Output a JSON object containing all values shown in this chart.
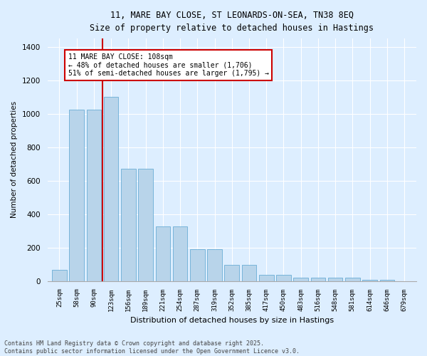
{
  "title_line1": "11, MARE BAY CLOSE, ST LEONARDS-ON-SEA, TN38 8EQ",
  "title_line2": "Size of property relative to detached houses in Hastings",
  "xlabel": "Distribution of detached houses by size in Hastings",
  "ylabel": "Number of detached properties",
  "categories": [
    "25sqm",
    "58sqm",
    "90sqm",
    "123sqm",
    "156sqm",
    "189sqm",
    "221sqm",
    "254sqm",
    "287sqm",
    "319sqm",
    "352sqm",
    "385sqm",
    "417sqm",
    "450sqm",
    "483sqm",
    "516sqm",
    "548sqm",
    "581sqm",
    "614sqm",
    "646sqm",
    "679sqm"
  ],
  "values": [
    65,
    1025,
    1025,
    1100,
    670,
    670,
    325,
    325,
    190,
    190,
    95,
    95,
    35,
    35,
    20,
    20,
    20,
    20,
    8,
    8,
    0
  ],
  "bar_color": "#b8d4ea",
  "bar_edge_color": "#6aadd5",
  "annotation_text": "11 MARE BAY CLOSE: 108sqm\n← 48% of detached houses are smaller (1,706)\n51% of semi-detached houses are larger (1,795) →",
  "annotation_box_color": "#ffffff",
  "annotation_border_color": "#cc0000",
  "ylim": [
    0,
    1450
  ],
  "yticks": [
    0,
    200,
    400,
    600,
    800,
    1000,
    1200,
    1400
  ],
  "background_color": "#ddeeff",
  "plot_bg_color": "#ddeeff",
  "footer_line1": "Contains HM Land Registry data © Crown copyright and database right 2025.",
  "footer_line2": "Contains public sector information licensed under the Open Government Licence v3.0.",
  "grid_color": "#ffffff",
  "red_line_color": "#cc0000",
  "red_line_index": 2.5
}
